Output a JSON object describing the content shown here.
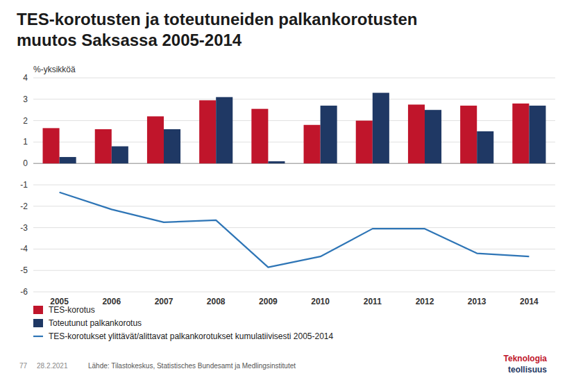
{
  "chart_data": {
    "type": "bar",
    "title": "TES-korotusten ja toteutuneiden palkankorotusten\nmuutos Saksassa 2005-2014",
    "ylabel": "%-yksikköä",
    "categories": [
      "2005",
      "2006",
      "2007",
      "2008",
      "2009",
      "2010",
      "2011",
      "2012",
      "2013",
      "2014"
    ],
    "series": [
      {
        "name": "TES-korotus",
        "type": "bar",
        "color": "#C0152B",
        "values": [
          1.65,
          1.6,
          2.2,
          2.95,
          2.55,
          1.8,
          2.0,
          2.75,
          2.7,
          2.8
        ]
      },
      {
        "name": "Toteutunut palkankorotus",
        "type": "bar",
        "color": "#1F3864",
        "values": [
          0.3,
          0.8,
          1.6,
          3.1,
          0.1,
          2.7,
          3.3,
          2.5,
          1.5,
          2.7
        ]
      },
      {
        "name": "TES-korotukset ylittävät/alittavat palkankorotukset kumulatiivisesti 2005-2014",
        "type": "line",
        "color": "#2E75B6",
        "values": [
          -1.35,
          -2.15,
          -2.75,
          -2.65,
          -4.85,
          -4.35,
          -3.05,
          -3.05,
          -4.2,
          -4.35
        ]
      }
    ],
    "ylim": [
      -6,
      4
    ],
    "yticks": [
      -6,
      -5,
      -4,
      -3,
      -2,
      -1,
      0,
      1,
      2,
      3,
      4
    ],
    "grid": true,
    "legend": "bottom",
    "annotations": [
      "77",
      "28.2.2021",
      "Lähde: Tilastokeskus, Statistisches Bundesamt ja Medlingsinstitutet",
      "Teknologia",
      "teollisuus"
    ]
  }
}
